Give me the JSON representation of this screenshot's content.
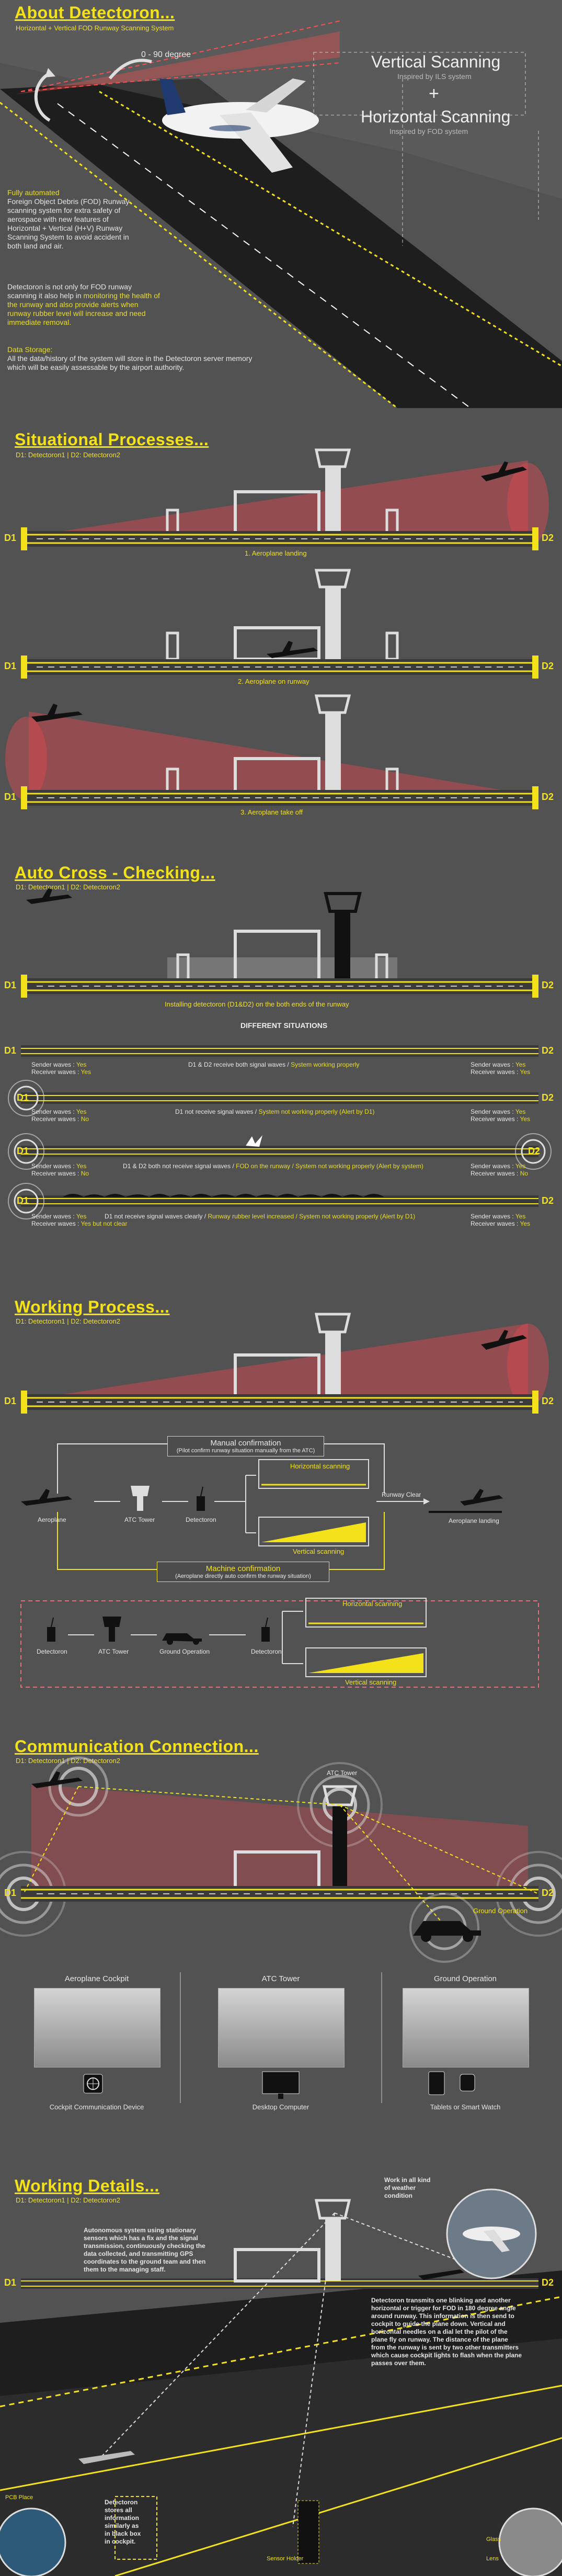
{
  "about": {
    "title": "About Detectoron...",
    "subtitle": "Horizontal + Vertical FOD Runway Scanning System",
    "angle_label": "0 - 90 degree",
    "vertical_title": "Vertical Scanning",
    "vertical_sub": "Inspired by ILS system",
    "plus": "+",
    "horizontal_title": "Horizontal Scanning",
    "horizontal_sub": "Inspired by FOD system",
    "para1_a": "Fully automated",
    "para1_b": "Foreign Object Debris (FOD) Runway scanning system for extra safety of aerospace with new features of Horizontal + Vertical (H+V) Runway Scanning System to avoid accident in both land and air.",
    "para2_a": "Detectoron is not only for FOD runway scanning it also help in",
    "para2_b": "monitoring the health of the runway and also provide alerts when runway rubber level will increase and need immediate removal.",
    "para3_title": "Data Storage:",
    "para3_text": "All the data/history of the system will store in the Detectoron server memory which will be easily assessable by the airport authority."
  },
  "situational": {
    "title": "Situational Processes...",
    "subtitle": "D1: Detectoron1 | D2: Detectoron2",
    "d1": "D1",
    "d2": "D2",
    "cap1": "1. Aeroplane landing",
    "cap2": "2. Aeroplane on runway",
    "cap3": "3. Aeroplane take off"
  },
  "autocross": {
    "title": "Auto Cross - Checking...",
    "subtitle": "D1: Detectoron1 | D2: Detectoron2",
    "d1": "D1",
    "d2": "D2",
    "install_caption": "Installing detectoron (D1&D2) on the both ends of the runway",
    "different": "DIFFERENT SITUATIONS",
    "sender_waves": "Sender waves :",
    "receiver_waves": "Receiver waves :",
    "yes": "Yes",
    "no": "No",
    "s1": "D1 & D2 receive both signal waves",
    "s1b": "System working properly",
    "s2": "D1 not receive signal waves",
    "s2b": "System not working properly (Alert by D1)",
    "s3": "D1 & D2 both not receive signal waves",
    "s3b": "FOD on the runway / System not working properly (Alert by system)",
    "s4": "D1 not receive signal waves clearly",
    "s4b": "Runway rubber level increased / System not working properly (Alert by D1)",
    "no_but_not_clear": "Yes but not clear"
  },
  "working": {
    "title": "Working Process...",
    "subtitle": "D1: Detectoron1 | D2: Detectoron2",
    "d1": "D1",
    "d2": "D2",
    "manual_title": "Manual confirmation",
    "manual_sub": "(Pilot confirm runway situation manually from the ATC)",
    "aeroplane": "Aeroplane",
    "atc": "ATC Tower",
    "detectoron": "Detectoron",
    "horizontal": "Horizontal scanning",
    "vertical": "Vertical scanning",
    "runway_clear": "Runway Clear",
    "landing": "Aeroplane landing",
    "machine_title": "Machine confirmation",
    "machine_sub": "(Aeroplane directly auto confirm the runway situation)",
    "ground": "Ground Operation"
  },
  "communication": {
    "title": "Communication Connection...",
    "subtitle": "D1: Detectoron1 | D2: Detectoron2",
    "d1": "D1",
    "d2": "D2",
    "atc_label": "ATC Tower",
    "ground_label": "Ground Operation",
    "cockpit": "Aeroplane Cockpit",
    "tower": "ATC Tower",
    "ground": "Ground Operation",
    "dev1": "Cockpit Communication Device",
    "dev2": "Desktop Computer",
    "dev3": "Tablets or Smart Watch"
  },
  "details": {
    "title": "Working Details...",
    "subtitle": "D1: Detectoron1 | D2: Detectoron2",
    "d1": "D1",
    "d2": "D2",
    "text_left": "Autonomous system using stationary sensors which has a fix and the signal transmission, continuously checking the data collected, and transmitting GPS coordinates to the ground team and then them to the managing staff.",
    "text_right_top": "Work in all kind of weather condition",
    "text_right": "Detectoron transmits one blinking and another horizontal or trigger for FOD in 180 degree angle around runway. This information is then send to cockpit to guide the plane down. Vertical and horizontal needles on a dial let the pilot of the plane fly on runway. The distance of the plane from the runway is sent by two other transmitters which cause cockpit lights to flash when the plane passes over them.",
    "text_bottom": "Detectoron stores all information similarly as in black box in cockpit.",
    "pcb": "PCB Place",
    "sensor": "Sensor Holder",
    "glass": "Glass",
    "lens": "Lens"
  }
}
